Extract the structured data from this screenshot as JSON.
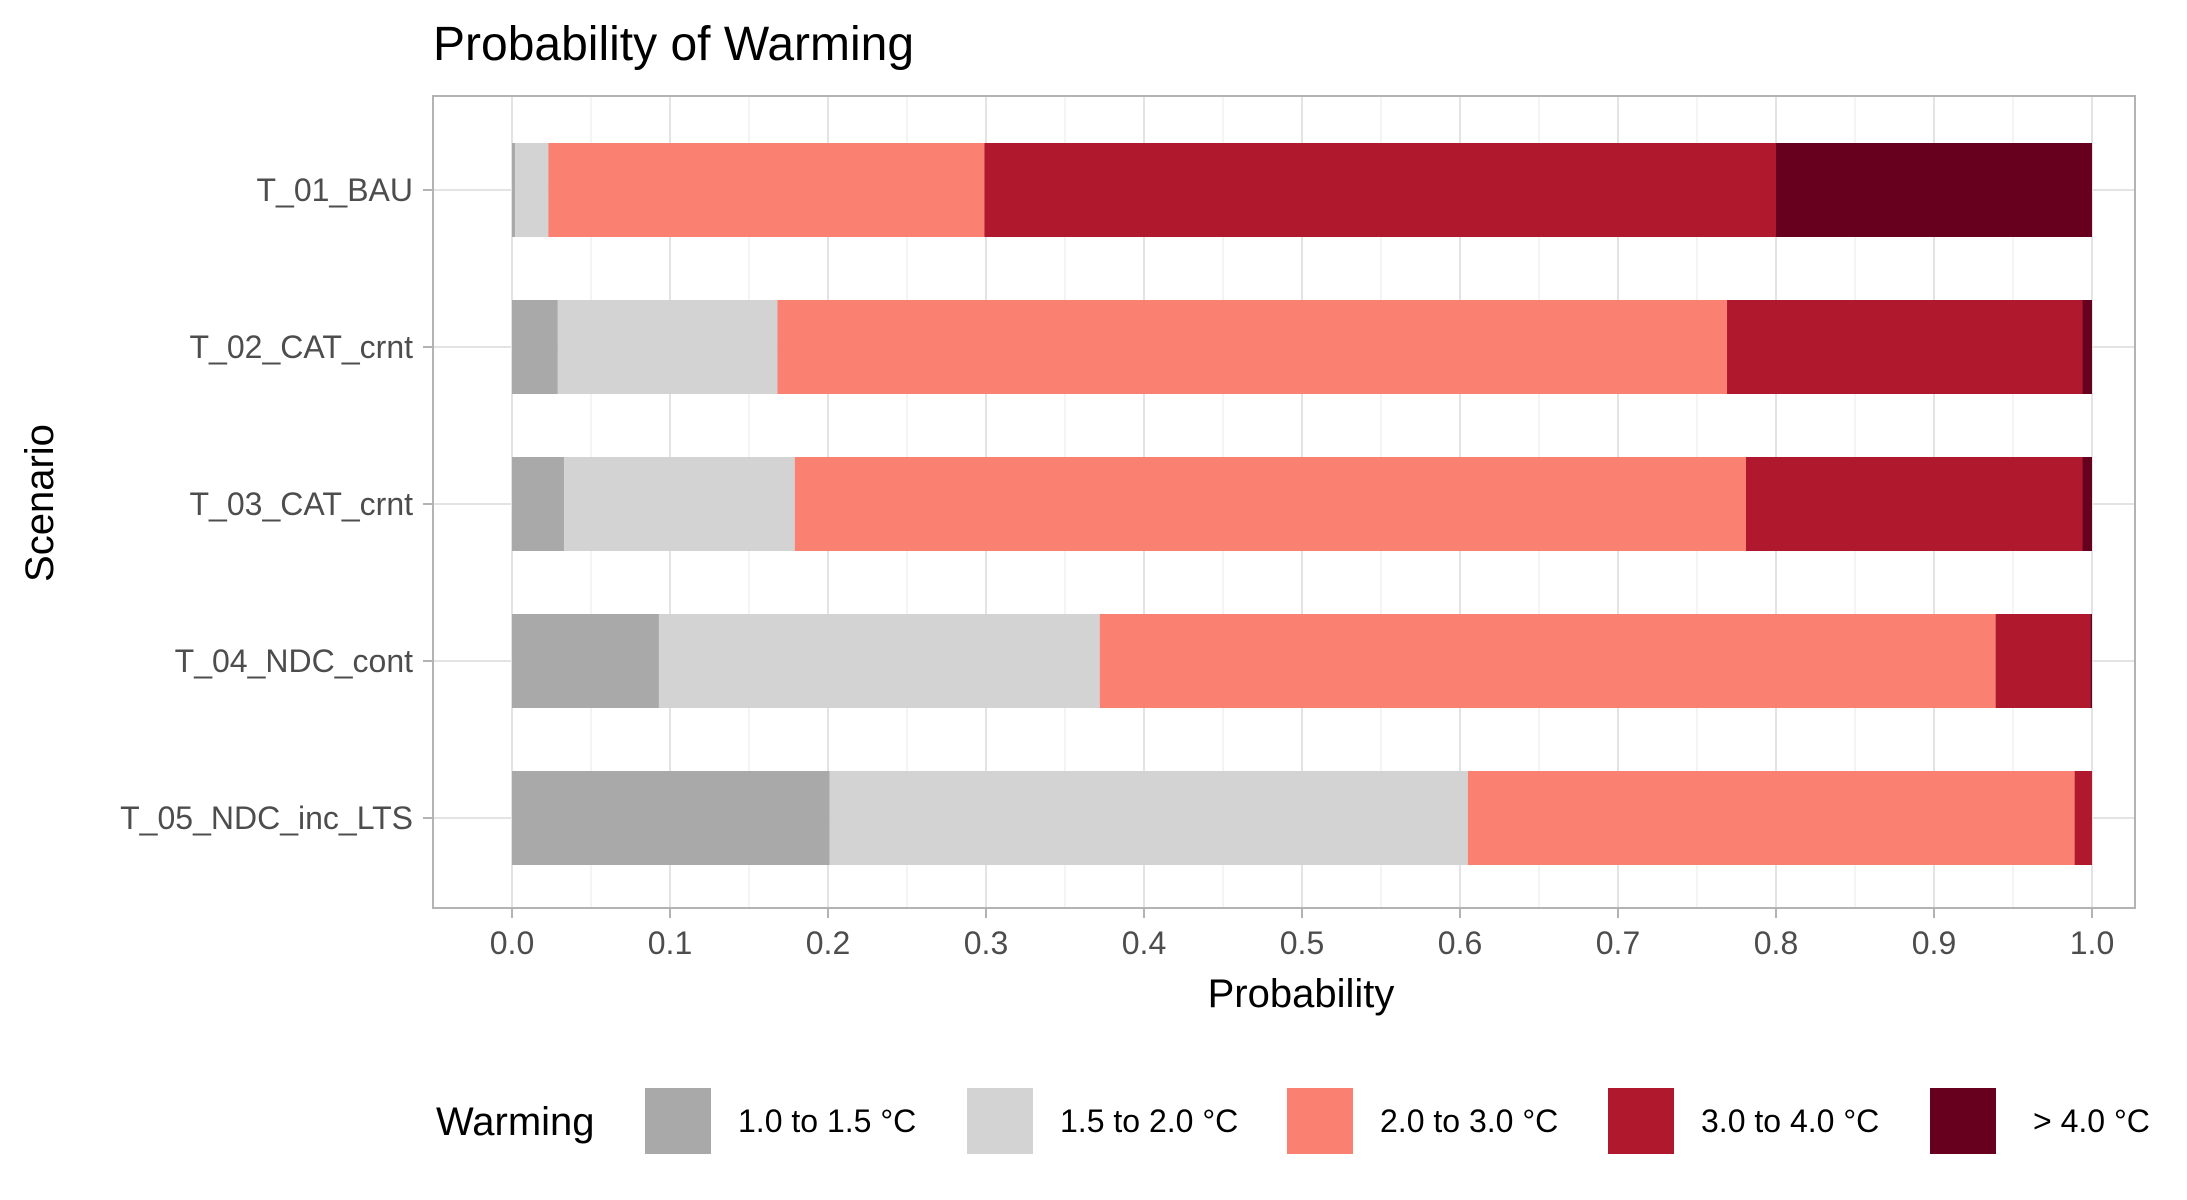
{
  "chart_data": {
    "type": "bar",
    "orientation": "horizontal",
    "stacked": true,
    "title": "Probability of Warming",
    "xlabel": "Probability",
    "ylabel": "Scenario",
    "xlim": [
      0,
      1
    ],
    "x_ticks": [
      "0.0",
      "0.1",
      "0.2",
      "0.3",
      "0.4",
      "0.5",
      "0.6",
      "0.7",
      "0.8",
      "0.9",
      "1.0"
    ],
    "grid": true,
    "legend_position": "bottom",
    "legend_title": "Warming",
    "categories": [
      "T_01_BAU",
      "T_02_CAT_crnt",
      "T_03_CAT_crnt",
      "T_04_NDC_cont",
      "T_05_NDC_inc_LTS"
    ],
    "series": [
      {
        "name": "1.0 to 1.5 °C",
        "color": "#a9a9a9",
        "values": [
          0.002,
          0.029,
          0.033,
          0.093,
          0.201
        ]
      },
      {
        "name": "1.5 to 2.0 °C",
        "color": "#d3d3d3",
        "values": [
          0.021,
          0.139,
          0.146,
          0.279,
          0.404
        ]
      },
      {
        "name": "2.0 to 3.0 °C",
        "color": "#fa8072",
        "values": [
          0.276,
          0.601,
          0.602,
          0.567,
          0.384
        ]
      },
      {
        "name": "3.0 to 4.0 °C",
        "color": "#b0182e",
        "values": [
          0.501,
          0.225,
          0.213,
          0.06,
          0.011
        ]
      },
      {
        "name": "> 4.0 °C",
        "color": "#67001f",
        "values": [
          0.2,
          0.006,
          0.006,
          0.001,
          0.0
        ]
      }
    ]
  }
}
